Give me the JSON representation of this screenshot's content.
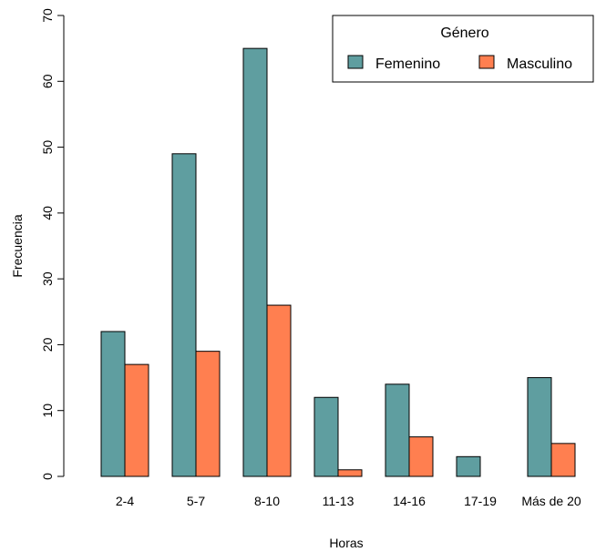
{
  "chart_data": {
    "type": "bar",
    "title": "",
    "xlabel": "Horas",
    "ylabel": "Frecuencia",
    "ylim": [
      0,
      70
    ],
    "yticks": [
      0,
      10,
      20,
      30,
      40,
      50,
      60,
      70
    ],
    "categories": [
      "2-4",
      "5-7",
      "8-10",
      "11-13",
      "14-16",
      "17-19",
      "Más de 20"
    ],
    "series": [
      {
        "name": "Femenino",
        "color": "#5F9EA0",
        "values": [
          22,
          49,
          65,
          12,
          14,
          3,
          15
        ]
      },
      {
        "name": "Masculino",
        "color": "#FF7F50",
        "values": [
          17,
          19,
          26,
          1,
          6,
          0,
          5
        ]
      }
    ],
    "legend": {
      "title": "Género",
      "position": "top-right"
    },
    "grid": false
  }
}
